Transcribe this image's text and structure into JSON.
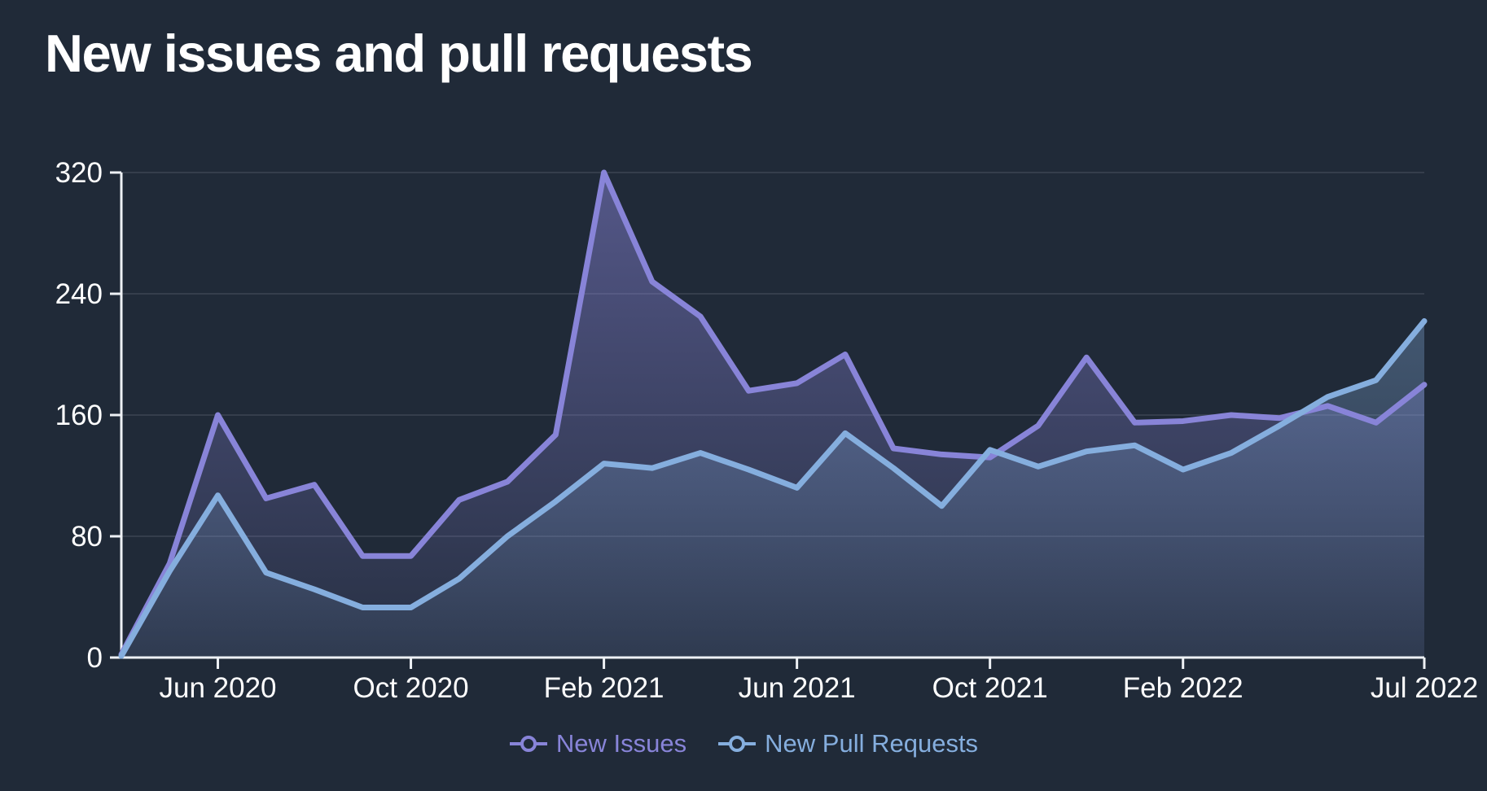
{
  "header": {
    "title": "New issues and pull requests"
  },
  "colors": {
    "background": "#202a38",
    "axis": "#eef1f5",
    "gridline": "rgba(203,213,225,0.12)",
    "title": "#ffffff",
    "tick_label": "#ffffff",
    "issues_accent": "#8884d8",
    "pull_requests_accent": "#85aede"
  },
  "chart_data": {
    "type": "area",
    "title": "New issues and pull requests",
    "xlabel": "",
    "ylabel": "",
    "ylim": [
      0,
      320
    ],
    "grid": "horizontal",
    "legend_position": "bottom",
    "x": [
      "Apr 2020",
      "May 2020",
      "Jun 2020",
      "Jul 2020",
      "Aug 2020",
      "Sep 2020",
      "Oct 2020",
      "Nov 2020",
      "Dec 2020",
      "Jan 2021",
      "Feb 2021",
      "Mar 2021",
      "Apr 2021",
      "May 2021",
      "Jun 2021",
      "Jul 2021",
      "Aug 2021",
      "Sep 2021",
      "Oct 2021",
      "Nov 2021",
      "Dec 2021",
      "Jan 2022",
      "Feb 2022",
      "Mar 2022",
      "Apr 2022",
      "May 2022",
      "Jun 2022",
      "Jul 2022"
    ],
    "x_tick_labels": [
      "Jun 2020",
      "Oct 2020",
      "Feb 2021",
      "Jun 2021",
      "Oct 2021",
      "Feb 2022",
      "Jul 2022"
    ],
    "x_tick_indices": [
      2,
      6,
      10,
      14,
      18,
      22,
      27
    ],
    "y_ticks": [
      0,
      80,
      160,
      240,
      320
    ],
    "series": [
      {
        "name": "New Issues",
        "color": "#8884d8",
        "values": [
          2,
          62,
          160,
          105,
          114,
          67,
          67,
          104,
          116,
          147,
          320,
          248,
          225,
          176,
          181,
          200,
          138,
          134,
          132,
          153,
          198,
          155,
          156,
          160,
          158,
          166,
          155,
          180
        ]
      },
      {
        "name": "New Pull Requests",
        "color": "#85aede",
        "values": [
          1,
          57,
          107,
          56,
          45,
          33,
          33,
          52,
          80,
          103,
          128,
          125,
          135,
          124,
          112,
          148,
          125,
          100,
          137,
          126,
          136,
          140,
          124,
          135,
          153,
          172,
          183,
          222
        ]
      }
    ]
  }
}
